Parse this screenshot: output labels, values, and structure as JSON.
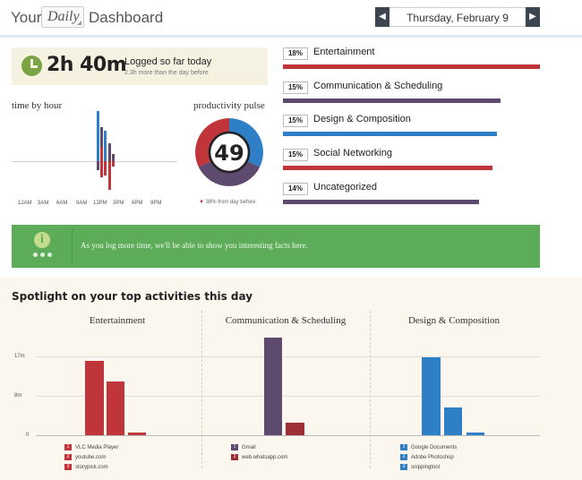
{
  "header": {
    "your": "Your",
    "period": "Daily",
    "dashboard": "Dashboard",
    "date": "Thursday, February 9",
    "prev_icon": "◀",
    "next_icon": "▶"
  },
  "logged": {
    "value": "2h 40m",
    "label": "Logged so far today",
    "sub": "2.3h more than the day before",
    "icon": "clock-icon"
  },
  "time_by_hour": {
    "title": "time by hour",
    "hour_labels": [
      "12AM",
      "3AM",
      "6AM",
      "9AM",
      "12PM",
      "3PM",
      "6PM",
      "9PM"
    ]
  },
  "pulse": {
    "title": "productivity pulse",
    "value": "49",
    "note": "38% from day before",
    "arrow": "▼",
    "colors": [
      "#2f7fc6",
      "#5e4a6e",
      "#c0353a"
    ]
  },
  "categories": [
    {
      "pct": "18%",
      "name": "Entertainment",
      "color": "#c0353a",
      "fraction": 1.0
    },
    {
      "pct": "15%",
      "name": "Communication & Scheduling",
      "color": "#5e4a6e",
      "fraction": 0.84
    },
    {
      "pct": "15%",
      "name": "Design & Composition",
      "color": "#2f7fc6",
      "fraction": 0.83
    },
    {
      "pct": "15%",
      "name": "Social Networking",
      "color": "#c0353a",
      "fraction": 0.82
    },
    {
      "pct": "14%",
      "name": "Uncategorized",
      "color": "#5e4a6e",
      "fraction": 0.76
    }
  ],
  "info": {
    "icon": "info-icon",
    "text": "As you log more time, we'll be able to show you interesting facts here."
  },
  "spotlight": {
    "title": "Spotlight on your top activities this day"
  },
  "chart_data": {
    "type": "bar",
    "ylim": [
      0,
      17
    ],
    "yticks": [
      "17m",
      "8m",
      "0"
    ],
    "panels": [
      {
        "title": "Entertainment",
        "series": [
          {
            "name": "VLC Media Player",
            "value": 16,
            "color": "#c0353a"
          },
          {
            "name": "youtube.com",
            "value": 11.5,
            "color": "#c0353a"
          },
          {
            "name": "storypick.com",
            "value": 0.6,
            "color": "#c0353a"
          }
        ]
      },
      {
        "title": "Communication & Scheduling",
        "series": [
          {
            "name": "Gmail",
            "value": 21,
            "color": "#5e4a6e"
          },
          {
            "name": "web.whatsapp.com",
            "value": 2.8,
            "color": "#9e2f37"
          }
        ]
      },
      {
        "title": "Design & Composition",
        "series": [
          {
            "name": "Google Documents",
            "value": 16.9,
            "color": "#2f7fc6"
          },
          {
            "name": "Adobe Photoshop",
            "value": 5.9,
            "color": "#2f7fc6"
          },
          {
            "name": "snippingtool",
            "value": 0.6,
            "color": "#2f7fc6"
          }
        ]
      }
    ]
  }
}
